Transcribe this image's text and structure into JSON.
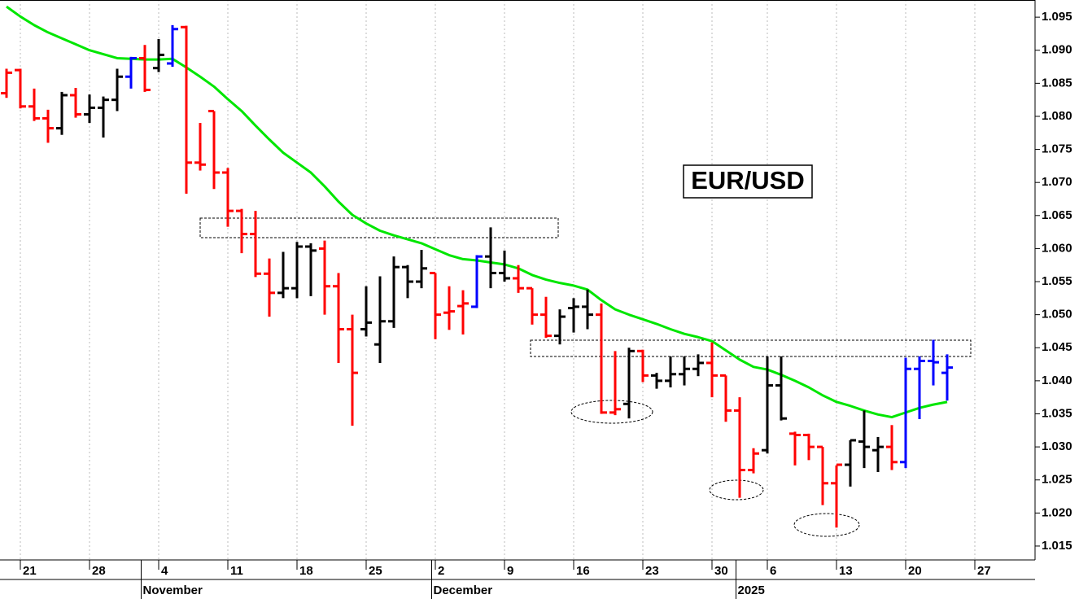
{
  "chart_data": {
    "type": "ohlc",
    "title": "EUR/USD",
    "categories": [
      null,
      "21",
      null,
      null,
      null,
      null,
      "28",
      null,
      null,
      null,
      null,
      "4",
      null,
      null,
      null,
      null,
      "11",
      null,
      null,
      null,
      null,
      "18",
      null,
      null,
      null,
      null,
      "25",
      null,
      null,
      null,
      null,
      "2",
      null,
      null,
      null,
      null,
      "9",
      null,
      null,
      null,
      null,
      "16",
      null,
      null,
      null,
      null,
      "23",
      null,
      null,
      null,
      null,
      "30",
      null,
      null,
      null,
      "6",
      null,
      null,
      null,
      null,
      "13",
      null,
      null,
      null,
      null,
      "20",
      null,
      null,
      null,
      null,
      "27"
    ],
    "category_groups": [
      null,
      null,
      null,
      null,
      null,
      null,
      null,
      null,
      null,
      null,
      "November",
      null,
      null,
      null,
      null,
      null,
      null,
      null,
      null,
      null,
      null,
      null,
      null,
      null,
      null,
      null,
      null,
      null,
      null,
      null,
      null,
      "December",
      null,
      null,
      null,
      null,
      null,
      null,
      null,
      null,
      null,
      null,
      null,
      null,
      null,
      null,
      null,
      null,
      null,
      null,
      null,
      null,
      null,
      "2025",
      null,
      null,
      null,
      null,
      null,
      null,
      null,
      null,
      null,
      null,
      null,
      null,
      null,
      null,
      null,
      null,
      null
    ],
    "open": [
      1.0835,
      1.087,
      1.0815,
      1.0797,
      1.0782,
      1.0832,
      1.0803,
      1.0813,
      1.0825,
      1.086,
      1.0888,
      1.0873,
      1.088,
      1.0935,
      1.073,
      1.0808,
      1.0715,
      1.0657,
      1.0622,
      1.0562,
      1.0533,
      1.054,
      1.0603,
      1.06,
      1.0543,
      1.0478,
      1.0478,
      1.0455,
      1.049,
      1.0572,
      1.055,
      1.0563,
      1.0503,
      1.0513,
      1.0512,
      1.0588,
      1.0563,
      1.0555,
      1.054,
      1.05,
      1.0468,
      1.051,
      1.0512,
      1.05,
      1.0352,
      1.0365,
      1.0445,
      1.0408,
      1.04,
      1.041,
      1.0418,
      1.0427,
      1.0408,
      1.0355,
      1.0265,
      1.0295,
      1.0393,
      1.032,
      1.0318,
      1.03,
      1.0245,
      1.0273,
      1.0308,
      1.0295,
      1.03,
      1.0277,
      1.0418,
      1.043,
      1.0412,
      null,
      null
    ],
    "high": [
      1.0872,
      1.0872,
      1.0842,
      1.081,
      1.0837,
      1.0843,
      1.0833,
      1.083,
      1.0872,
      1.089,
      1.0908,
      1.0917,
      1.0938,
      1.0937,
      1.079,
      1.0808,
      1.0722,
      1.066,
      1.0657,
      1.0585,
      1.0595,
      1.061,
      1.0608,
      1.0612,
      1.0563,
      1.05,
      1.0543,
      1.0558,
      1.0588,
      1.0575,
      1.0598,
      1.0563,
      1.0543,
      1.0537,
      1.059,
      1.0632,
      1.0597,
      1.0575,
      1.054,
      1.0527,
      1.0508,
      1.0525,
      1.0538,
      1.0517,
      1.0445,
      1.045,
      1.0447,
      1.0412,
      1.0437,
      1.0437,
      1.044,
      1.0458,
      1.0408,
      1.0375,
      1.0298,
      1.0437,
      1.0437,
      1.0323,
      1.032,
      1.03,
      1.0272,
      1.031,
      1.0355,
      1.0315,
      1.0333,
      1.0435,
      1.0437,
      1.0462,
      1.044,
      null,
      null
    ],
    "low": [
      1.0828,
      1.0812,
      1.0793,
      1.076,
      1.0772,
      1.0798,
      1.079,
      1.0768,
      1.0808,
      1.0842,
      1.0837,
      1.0867,
      1.0875,
      1.0683,
      1.0718,
      1.069,
      1.0633,
      1.0593,
      1.0557,
      1.0497,
      1.0525,
      1.0525,
      1.0528,
      1.05,
      1.0427,
      1.0332,
      1.0467,
      1.0427,
      1.048,
      1.0525,
      1.054,
      1.0463,
      1.0477,
      1.047,
      1.051,
      1.054,
      1.055,
      1.0533,
      1.0485,
      1.0465,
      1.0455,
      1.0473,
      1.0478,
      1.035,
      1.0348,
      1.0343,
      1.0398,
      1.0388,
      1.039,
      1.0393,
      1.0407,
      1.0375,
      1.0338,
      1.0223,
      1.026,
      1.029,
      1.034,
      1.0272,
      1.028,
      1.0212,
      1.0178,
      1.024,
      1.0268,
      1.0262,
      1.0265,
      1.0268,
      1.0342,
      1.0393,
      1.037,
      null,
      null
    ],
    "close": [
      1.0866,
      1.0815,
      1.0797,
      1.0782,
      1.0832,
      1.0803,
      1.0813,
      1.0825,
      1.086,
      1.0888,
      1.084,
      1.0893,
      1.0932,
      1.073,
      1.0727,
      1.0715,
      1.0657,
      1.0622,
      1.0562,
      1.0533,
      1.054,
      1.0603,
      1.0597,
      1.0543,
      1.0478,
      1.0412,
      1.0488,
      1.049,
      1.0572,
      1.055,
      1.057,
      1.05,
      1.0505,
      1.0517,
      1.0588,
      1.0563,
      1.0555,
      1.054,
      1.05,
      1.0468,
      1.0497,
      1.0512,
      1.05,
      1.0352,
      1.0357,
      1.0445,
      1.0408,
      1.04,
      1.041,
      1.0418,
      1.0427,
      1.0408,
      1.0355,
      1.0265,
      1.029,
      1.0393,
      1.0343,
      1.0318,
      1.03,
      1.0245,
      1.0273,
      1.031,
      1.03,
      1.03,
      1.0277,
      1.0418,
      1.043,
      1.0428,
      1.042,
      null,
      null
    ],
    "colors": [
      "#ff0000",
      "#ff0000",
      "#ff0000",
      "#ff0000",
      "#000000",
      "#ff0000",
      "#000000",
      "#000000",
      "#000000",
      "#0000ff",
      "#ff0000",
      "#000000",
      "#0000ff",
      "#ff0000",
      "#ff0000",
      "#ff0000",
      "#ff0000",
      "#ff0000",
      "#ff0000",
      "#ff0000",
      "#000000",
      "#000000",
      "#000000",
      "#ff0000",
      "#ff0000",
      "#ff0000",
      "#000000",
      "#000000",
      "#000000",
      "#000000",
      "#000000",
      "#ff0000",
      "#ff0000",
      "#ff0000",
      "#0000ff",
      "#000000",
      "#000000",
      "#ff0000",
      "#ff0000",
      "#ff0000",
      "#000000",
      "#000000",
      "#000000",
      "#ff0000",
      "#ff0000",
      "#000000",
      "#ff0000",
      "#000000",
      "#000000",
      "#000000",
      "#000000",
      "#ff0000",
      "#ff0000",
      "#ff0000",
      "#ff0000",
      "#000000",
      "#000000",
      "#ff0000",
      "#ff0000",
      "#ff0000",
      "#ff0000",
      "#000000",
      "#000000",
      "#000000",
      "#ff0000",
      "#0000ff",
      "#0000ff",
      "#0000ff",
      "#0000ff",
      null,
      null
    ],
    "moving_average": {
      "color": "#00e600",
      "values": [
        1.0966,
        1.0951,
        1.0938,
        1.0927,
        1.0918,
        1.0909,
        1.09,
        1.0894,
        1.0888,
        1.0887,
        1.0886,
        1.0886,
        1.0887,
        1.0874,
        1.086,
        1.0845,
        1.0826,
        1.0808,
        1.0786,
        1.0765,
        1.0745,
        1.073,
        1.0715,
        1.0694,
        1.0671,
        1.0651,
        1.0638,
        1.0627,
        1.062,
        1.0614,
        1.0608,
        1.0599,
        1.059,
        1.0584,
        1.0582,
        1.0579,
        1.0576,
        1.057,
        1.056,
        1.0553,
        1.0548,
        1.0544,
        1.0538,
        1.0522,
        1.0508,
        1.05,
        1.0493,
        1.0486,
        1.0478,
        1.0471,
        1.0466,
        1.046,
        1.0446,
        1.0432,
        1.0421,
        1.0417,
        1.0409,
        1.04,
        1.039,
        1.0378,
        1.0368,
        1.0362,
        1.0355,
        1.0349,
        1.0345,
        1.0352,
        1.0359,
        1.0364,
        1.0368,
        null,
        null
      ]
    },
    "ylim": [
      1.0129,
      1.0976
    ],
    "yticks": [
      {
        "value": 1.015,
        "label": "1.015"
      },
      {
        "value": 1.02,
        "label": "1.020"
      },
      {
        "value": 1.025,
        "label": "1.025"
      },
      {
        "value": 1.03,
        "label": "1.030"
      },
      {
        "value": 1.035,
        "label": "1.035"
      },
      {
        "value": 1.04,
        "label": "1.040"
      },
      {
        "value": 1.045,
        "label": "1.045"
      },
      {
        "value": 1.05,
        "label": "1.050"
      },
      {
        "value": 1.055,
        "label": "1.055"
      },
      {
        "value": 1.06,
        "label": "1.060"
      },
      {
        "value": 1.065,
        "label": "1.065"
      },
      {
        "value": 1.07,
        "label": "1.070"
      },
      {
        "value": 1.075,
        "label": "1.075"
      },
      {
        "value": 1.08,
        "label": "1.080"
      },
      {
        "value": 1.085,
        "label": "1.085"
      },
      {
        "value": 1.09,
        "label": "1.090"
      },
      {
        "value": 1.095,
        "label": "1.095"
      }
    ],
    "y_axis_side": "right",
    "grid": true
  }
}
